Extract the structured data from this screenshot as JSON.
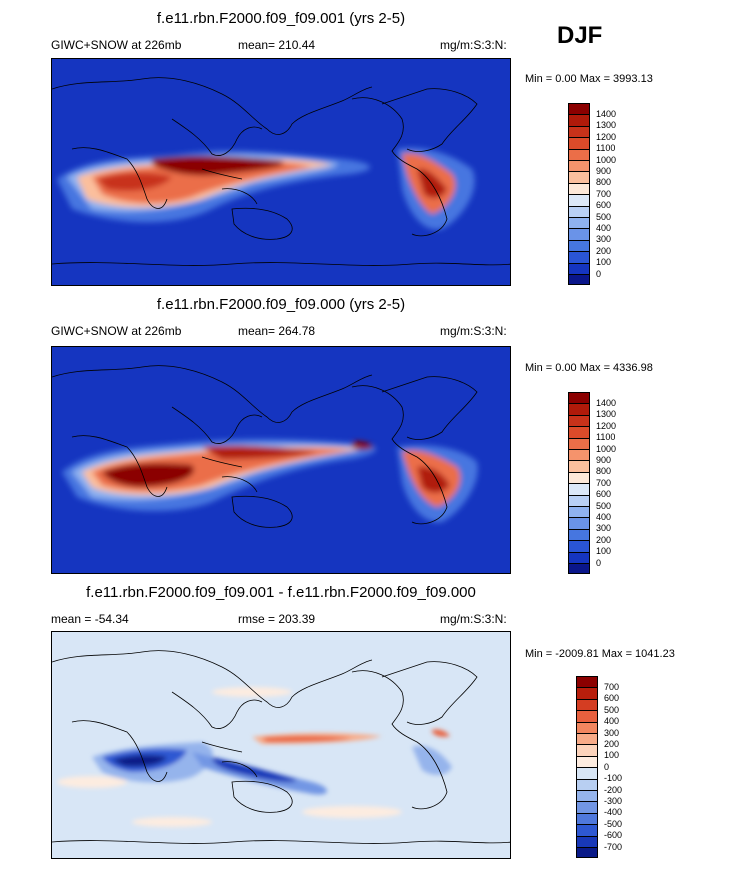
{
  "season": "DJF",
  "panels": [
    {
      "id": "p1",
      "title": "f.e11.rbn.F2000.f09_f09.001 (yrs 2-5)",
      "left_label": "GIWC+SNOW at 226mb",
      "mid_label": "mean= 210.44",
      "right_label": "mg/m:S:3:N:",
      "minmax": "Min =   0.00 Max = 3993.13",
      "type": "field",
      "colorbar": {
        "labels": [
          "1400",
          "1300",
          "1200",
          "1100",
          "1000",
          "900",
          "800",
          "700",
          "600",
          "500",
          "400",
          "300",
          "200",
          "100",
          "0"
        ],
        "colors": [
          "#8b0000",
          "#b01a0a",
          "#c8321a",
          "#dc4b2a",
          "#eb6e48",
          "#f5936c",
          "#fbbf9d",
          "#fde8d8",
          "#dce8f8",
          "#b9d0f5",
          "#8fb2f0",
          "#6a93e8",
          "#4676e0",
          "#2a55d6",
          "#1535c0",
          "#0a168a"
        ]
      }
    },
    {
      "id": "p2",
      "title": "f.e11.rbn.F2000.f09_f09.000 (yrs 2-5)",
      "left_label": "GIWC+SNOW at 226mb",
      "mid_label": "mean= 264.78",
      "right_label": "mg/m:S:3:N:",
      "minmax": "Min =   0.00 Max = 4336.98",
      "type": "field",
      "colorbar": {
        "labels": [
          "1400",
          "1300",
          "1200",
          "1100",
          "1000",
          "900",
          "800",
          "700",
          "600",
          "500",
          "400",
          "300",
          "200",
          "100",
          "0"
        ],
        "colors": [
          "#8b0000",
          "#b01a0a",
          "#c8321a",
          "#dc4b2a",
          "#eb6e48",
          "#f5936c",
          "#fbbf9d",
          "#fde8d8",
          "#dce8f8",
          "#b9d0f5",
          "#8fb2f0",
          "#6a93e8",
          "#4676e0",
          "#2a55d6",
          "#1535c0",
          "#0a168a"
        ]
      }
    },
    {
      "id": "p3",
      "title": "f.e11.rbn.F2000.f09_f09.001 - f.e11.rbn.F2000.f09_f09.000",
      "left_label": "mean = -54.34",
      "mid_label": "rmse = 203.39",
      "right_label": "mg/m:S:3:N:",
      "minmax": "Min = -2009.81 Max = 1041.23",
      "type": "diff",
      "colorbar": {
        "labels": [
          "700",
          "600",
          "500",
          "400",
          "300",
          "200",
          "100",
          "0",
          "-100",
          "-200",
          "-300",
          "-400",
          "-500",
          "-600",
          "-700"
        ],
        "colors": [
          "#8b0000",
          "#b81e0c",
          "#d43d22",
          "#e8603e",
          "#f2865f",
          "#f8ab88",
          "#fcd3bb",
          "#fdece0",
          "#d8e6f6",
          "#b8cff2",
          "#95b4ec",
          "#7296e4",
          "#4f78dc",
          "#2e58d2",
          "#1838b8",
          "#0a1a88"
        ]
      }
    }
  ]
}
